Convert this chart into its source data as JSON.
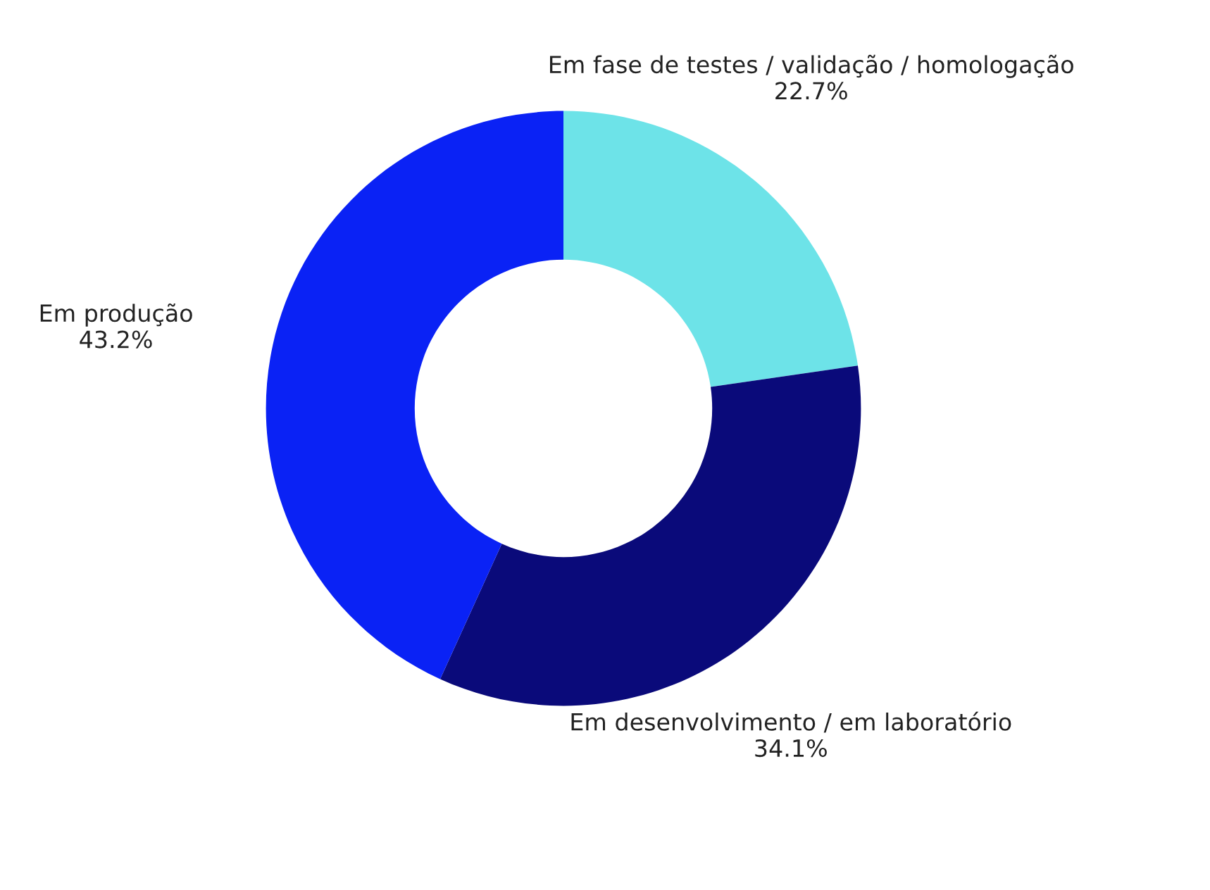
{
  "chart_data": {
    "type": "donut",
    "categories": [
      "Em fase de testes / validação / homologação",
      "Em desenvolvimento / em laboratório",
      "Em produção"
    ],
    "values": [
      22.7,
      34.1,
      43.2
    ],
    "value_labels": [
      "22.7%",
      "34.1%",
      "43.2%"
    ],
    "colors": [
      "#6de3e8",
      "#0a0a7a",
      "#0a22f5"
    ],
    "legend": false
  }
}
